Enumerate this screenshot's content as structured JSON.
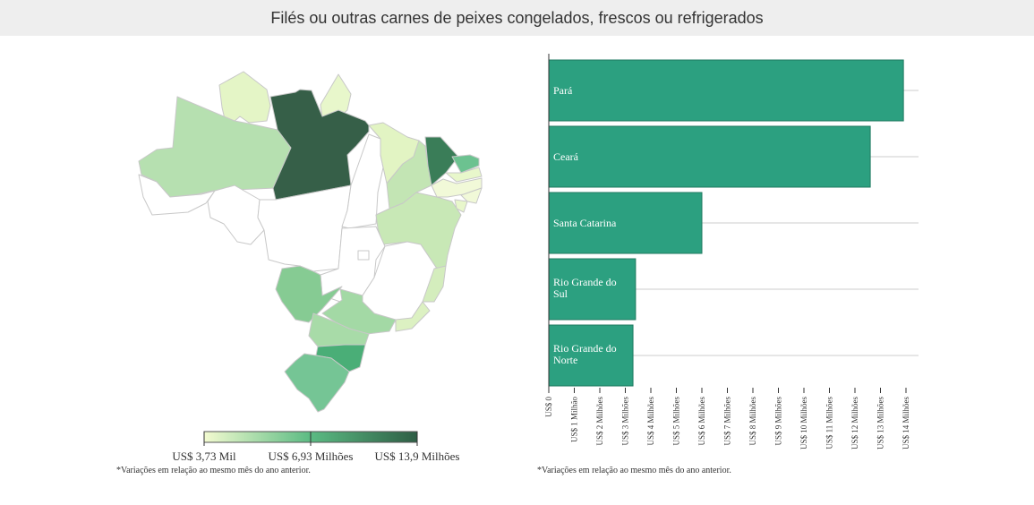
{
  "title": "Filés ou outras carnes de peixes congelados, frescos ou refrigerados",
  "footnote_left": "*Variações em relação ao mesmo mês do ano anterior.",
  "footnote_right": "*Variações em relação ao mesmo mês do ano anterior.",
  "colors": {
    "bar": "#2ca080",
    "bar_stroke": "#1f7a60",
    "low": "#f3fbd0",
    "mid": "#5bbb83",
    "high": "#2e5e45",
    "neutral": "#ffffff",
    "border": "#cccccc"
  },
  "legend": {
    "labels": [
      "US$ 3,73 Mil",
      "US$ 6,93 Milhões",
      "US$ 13,9 Milhões"
    ]
  },
  "map": {
    "states": [
      {
        "code": "RR",
        "name": "Roraima",
        "fill": "#e4f5c6"
      },
      {
        "code": "AP",
        "name": "Amapá",
        "fill": "#e8f7cb"
      },
      {
        "code": "AM",
        "name": "Amazonas",
        "fill": "#b6e0b0"
      },
      {
        "code": "PA",
        "name": "Pará",
        "fill": "#365f48"
      },
      {
        "code": "AC",
        "name": "Acre",
        "fill": "#ffffff"
      },
      {
        "code": "RO",
        "name": "Rondônia",
        "fill": "#ffffff"
      },
      {
        "code": "MT",
        "name": "Mato Grosso",
        "fill": "#ffffff"
      },
      {
        "code": "TO",
        "name": "Tocantins",
        "fill": "#ffffff"
      },
      {
        "code": "MA",
        "name": "Maranhão",
        "fill": "#e2f4c3"
      },
      {
        "code": "PI",
        "name": "Piauí",
        "fill": "#c3e5b4"
      },
      {
        "code": "CE",
        "name": "Ceará",
        "fill": "#3a7d58"
      },
      {
        "code": "RN",
        "name": "Rio Grande do Norte",
        "fill": "#6cc290"
      },
      {
        "code": "PB",
        "name": "Paraíba",
        "fill": "#e8f7cb"
      },
      {
        "code": "PE",
        "name": "Pernambuco",
        "fill": "#f1f9d8"
      },
      {
        "code": "AL",
        "name": "Alagoas",
        "fill": "#f1f9d8"
      },
      {
        "code": "SE",
        "name": "Sergipe",
        "fill": "#e8f7cb"
      },
      {
        "code": "BA",
        "name": "Bahia",
        "fill": "#c8e8b6"
      },
      {
        "code": "GO",
        "name": "Goiás",
        "fill": "#ffffff"
      },
      {
        "code": "DF",
        "name": "Distrito Federal",
        "fill": "#ffffff"
      },
      {
        "code": "MG",
        "name": "Minas Gerais",
        "fill": "#ffffff"
      },
      {
        "code": "ES",
        "name": "Espírito Santo",
        "fill": "#d4edbd"
      },
      {
        "code": "MS",
        "name": "Mato Grosso do Sul",
        "fill": "#86cb93"
      },
      {
        "code": "SP",
        "name": "São Paulo",
        "fill": "#a3d9a5"
      },
      {
        "code": "RJ",
        "name": "Rio de Janeiro",
        "fill": "#dcf1c2"
      },
      {
        "code": "PR",
        "name": "Paraná",
        "fill": "#a8dba8"
      },
      {
        "code": "SC",
        "name": "Santa Catarina",
        "fill": "#4aae77"
      },
      {
        "code": "RS",
        "name": "Rio Grande do Sul",
        "fill": "#75c595"
      }
    ]
  },
  "chart_data": {
    "type": "bar",
    "orientation": "horizontal",
    "categories": [
      "Pará",
      "Ceará",
      "Santa Catarina",
      "Rio Grande do Sul",
      "Rio Grande do Norte"
    ],
    "category_lines": [
      [
        "Pará"
      ],
      [
        "Ceará"
      ],
      [
        "Santa Catarina"
      ],
      [
        "Rio Grande do",
        "Sul"
      ],
      [
        "Rio Grande do",
        "Norte"
      ]
    ],
    "values": [
      13.9,
      12.6,
      6.0,
      3.4,
      3.3
    ],
    "unit": "US$ milhões",
    "xlim": [
      0,
      14
    ],
    "ticks": [
      "US$ 0",
      "US$ 1 Milhão",
      "US$ 2 Milhões",
      "US$ 3 Milhões",
      "US$ 4 Milhões",
      "US$ 5 Milhões",
      "US$ 6 Milhões",
      "US$ 7 Milhões",
      "US$ 8 Milhões",
      "US$ 9 Milhões",
      "US$ 10 Milhões",
      "US$ 11 Milhões",
      "US$ 12 Milhões",
      "US$ 13 Milhões",
      "US$ 14 Milhões"
    ],
    "grid": true
  }
}
